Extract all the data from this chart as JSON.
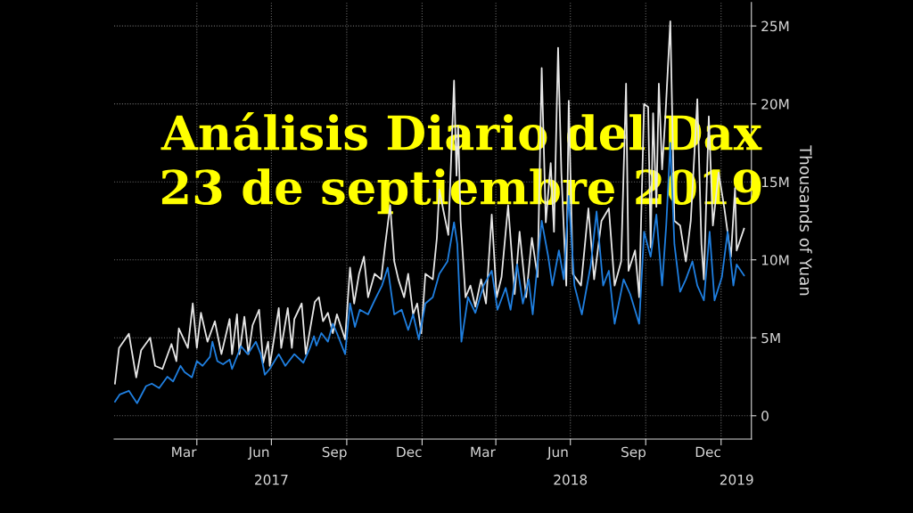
{
  "chart_data": {
    "type": "line",
    "title": "Análisis Diario del Dax\n23 de septiembre 2019",
    "ylabel": "Thousands of Yuan",
    "xlim": [
      "2016-12-21",
      "2019-02-07"
    ],
    "xticks": [
      {
        "value": "2017-04-01",
        "label": null
      },
      {
        "value": "2017-07-01",
        "label": null
      },
      {
        "value": "2017-10-01",
        "label": null
      },
      {
        "value": "2018-01-01",
        "label": null
      },
      {
        "value": "2018-04-01",
        "label": null
      },
      {
        "value": "2018-07-01",
        "label": null
      },
      {
        "value": "2018-10-01",
        "label": null
      },
      {
        "value": "2019-01-01",
        "label": null
      },
      {
        "value": "2017-03-16",
        "label": "Mar"
      },
      {
        "value": "2017-06-16",
        "label": "Jun"
      },
      {
        "value": "2017-09-16",
        "label": "Sep"
      },
      {
        "value": "2017-12-16",
        "label": "Dec"
      },
      {
        "value": "2018-03-16",
        "label": "Mar"
      },
      {
        "value": "2018-06-16",
        "label": "Jun"
      },
      {
        "value": "2018-09-16",
        "label": "Sep"
      },
      {
        "value": "2018-12-16",
        "label": "Dec"
      }
    ],
    "x2lim": [
      "2016-12-21",
      "2019-02-07"
    ],
    "x2ticks": [
      {
        "value": "2017-07-01",
        "label": "2017"
      },
      {
        "value": "2018-07-01",
        "label": "2018"
      },
      {
        "value": "2019-01-20",
        "label": "2019"
      }
    ],
    "ylim": [
      -1500000.0,
      26500000.0
    ],
    "yticks": [
      {
        "value": 0,
        "label": "0"
      },
      {
        "value": 5000000.0,
        "label": "5M"
      },
      {
        "value": 10000000.0,
        "label": "10M"
      },
      {
        "value": 15000000.0,
        "label": "15M"
      },
      {
        "value": 20000000.0,
        "label": "20M"
      },
      {
        "value": 25000000.0,
        "label": "25M"
      }
    ],
    "grid": true,
    "line_style": "solid",
    "series": [
      {
        "color": "#e6e6e6",
        "x": [
          "2016-12-22",
          "2016-12-27",
          "2017-01-08",
          "2017-01-17",
          "2017-01-23",
          "2017-02-03",
          "2017-02-09",
          "2017-02-18",
          "2017-03-01",
          "2017-03-07",
          "2017-03-10",
          "2017-03-21",
          "2017-03-27",
          "2017-04-01",
          "2017-04-06",
          "2017-04-14",
          "2017-04-23",
          "2017-05-01",
          "2017-05-11",
          "2017-05-14",
          "2017-05-20",
          "2017-05-23",
          "2017-05-29",
          "2017-06-03",
          "2017-06-08",
          "2017-06-16",
          "2017-06-21",
          "2017-06-27",
          "2017-06-29",
          "2017-07-10",
          "2017-07-13",
          "2017-07-21",
          "2017-07-26",
          "2017-07-29",
          "2017-08-07",
          "2017-08-12",
          "2017-08-23",
          "2017-08-28",
          "2017-09-02",
          "2017-09-08",
          "2017-09-14",
          "2017-09-19",
          "2017-09-29",
          "2017-10-05",
          "2017-10-10",
          "2017-10-16",
          "2017-10-22",
          "2017-10-27",
          "2017-11-04",
          "2017-11-12",
          "2017-11-17",
          "2017-11-23",
          "2017-11-28",
          "2017-12-03",
          "2017-12-10",
          "2017-12-15",
          "2017-12-21",
          "2017-12-26",
          "2017-12-31",
          "2018-01-05",
          "2018-01-14",
          "2018-01-19",
          "2018-01-22",
          "2018-01-28",
          "2018-02-02",
          "2018-02-09",
          "2018-02-12",
          "2018-02-14",
          "2018-02-17",
          "2018-02-23",
          "2018-03-01",
          "2018-03-07",
          "2018-03-14",
          "2018-03-20",
          "2018-03-27",
          "2018-04-02",
          "2018-04-08",
          "2018-04-16",
          "2018-04-24",
          "2018-04-30",
          "2018-05-08",
          "2018-05-15",
          "2018-05-22",
          "2018-05-27",
          "2018-06-01",
          "2018-06-07",
          "2018-06-11",
          "2018-06-16",
          "2018-06-20",
          "2018-06-26",
          "2018-06-29",
          "2018-07-04",
          "2018-07-14",
          "2018-07-23",
          "2018-07-30",
          "2018-08-08",
          "2018-08-17",
          "2018-08-24",
          "2018-09-01",
          "2018-09-07",
          "2018-09-10",
          "2018-09-18",
          "2018-09-23",
          "2018-09-29",
          "2018-10-04",
          "2018-10-07",
          "2018-10-10",
          "2018-10-14",
          "2018-10-17",
          "2018-10-21",
          "2018-10-25",
          "2018-10-31",
          "2018-11-05",
          "2018-11-12",
          "2018-11-19",
          "2018-11-25",
          "2018-12-03",
          "2018-12-08",
          "2018-12-11",
          "2018-12-17",
          "2018-12-22",
          "2018-12-29",
          "2019-01-05",
          "2019-01-13",
          "2019-01-18",
          "2019-01-20",
          "2019-01-29"
        ],
        "values": [
          2060000.0,
          4350000.0,
          5260000.0,
          2460000.0,
          4200000.0,
          5000000.0,
          3200000.0,
          3000000.0,
          4600000.0,
          3500000.0,
          5600000.0,
          4350000.0,
          7200000.0,
          4350000.0,
          6600000.0,
          4750000.0,
          6060000.0,
          3950000.0,
          6200000.0,
          3950000.0,
          6500000.0,
          3950000.0,
          6350000.0,
          3950000.0,
          5800000.0,
          6800000.0,
          3400000.0,
          4750000.0,
          3200000.0,
          6900000.0,
          4350000.0,
          6900000.0,
          4350000.0,
          6200000.0,
          7200000.0,
          3950000.0,
          7300000.0,
          7600000.0,
          6060000.0,
          6600000.0,
          5300000.0,
          6500000.0,
          4900000.0,
          9500000.0,
          7200000.0,
          9100000.0,
          10200000.0,
          7600000.0,
          9100000.0,
          8750000.0,
          11000000.0,
          13500000.0,
          9900000.0,
          8750000.0,
          7600000.0,
          9100000.0,
          6500000.0,
          7200000.0,
          5300000.0,
          9100000.0,
          8750000.0,
          11400000.0,
          14500000.0,
          12900000.0,
          11600000.0,
          21500000.0,
          15400000.0,
          18600000.0,
          12500000.0,
          7600000.0,
          8350000.0,
          7000000.0,
          8750000.0,
          7200000.0,
          12900000.0,
          7600000.0,
          8900000.0,
          13500000.0,
          7800000.0,
          11800000.0,
          7600000.0,
          11400000.0,
          8900000.0,
          22300000.0,
          12400000.0,
          16200000.0,
          11800000.0,
          23600000.0,
          15600000.0,
          8350000.0,
          20200000.0,
          9100000.0,
          8350000.0,
          13300000.0,
          8750000.0,
          12500000.0,
          13300000.0,
          8350000.0,
          9900000.0,
          21300000.0,
          9300000.0,
          10600000.0,
          7600000.0,
          20000000.0,
          19800000.0,
          10800000.0,
          19400000.0,
          13400000.0,
          21300000.0,
          15800000.0,
          19200000.0,
          25300000.0,
          12500000.0,
          12200000.0,
          9900000.0,
          12500000.0,
          20300000.0,
          11000000.0,
          8750000.0,
          19200000.0,
          12200000.0,
          15600000.0,
          13300000.0,
          10200000.0,
          14600000.0,
          10600000.0,
          12000000.0
        ]
      },
      {
        "color": "#1f7fe0",
        "x": [
          "2016-12-22",
          "2016-12-28",
          "2017-01-08",
          "2017-01-13",
          "2017-01-18",
          "2017-01-29",
          "2017-02-05",
          "2017-02-14",
          "2017-02-24",
          "2017-03-03",
          "2017-03-12",
          "2017-03-17",
          "2017-03-26",
          "2017-04-01",
          "2017-04-08",
          "2017-04-17",
          "2017-04-20",
          "2017-04-26",
          "2017-05-03",
          "2017-05-11",
          "2017-05-14",
          "2017-05-25",
          "2017-06-02",
          "2017-06-12",
          "2017-06-18",
          "2017-06-23",
          "2017-06-29",
          "2017-07-10",
          "2017-07-18",
          "2017-07-29",
          "2017-08-09",
          "2017-08-17",
          "2017-08-22",
          "2017-08-25",
          "2017-08-31",
          "2017-09-08",
          "2017-09-14",
          "2017-09-19",
          "2017-09-29",
          "2017-10-05",
          "2017-10-11",
          "2017-10-17",
          "2017-10-27",
          "2017-11-04",
          "2017-11-13",
          "2017-11-20",
          "2017-11-28",
          "2017-12-07",
          "2017-12-15",
          "2017-12-21",
          "2017-12-28",
          "2018-01-05",
          "2018-01-14",
          "2018-01-22",
          "2018-02-01",
          "2018-02-09",
          "2018-02-13",
          "2018-02-18",
          "2018-02-26",
          "2018-03-07",
          "2018-03-17",
          "2018-03-27",
          "2018-04-03",
          "2018-04-13",
          "2018-04-19",
          "2018-04-27",
          "2018-05-04",
          "2018-05-11",
          "2018-05-16",
          "2018-05-27",
          "2018-06-04",
          "2018-06-09",
          "2018-06-17",
          "2018-06-23",
          "2018-06-29",
          "2018-07-06",
          "2018-07-15",
          "2018-07-26",
          "2018-08-02",
          "2018-08-10",
          "2018-08-17",
          "2018-08-24",
          "2018-09-04",
          "2018-09-12",
          "2018-09-23",
          "2018-09-29",
          "2018-10-07",
          "2018-10-14",
          "2018-10-21",
          "2018-10-26",
          "2018-10-31",
          "2018-11-05",
          "2018-11-12",
          "2018-11-19",
          "2018-11-27",
          "2018-12-03",
          "2018-12-11",
          "2018-12-18",
          "2018-12-24",
          "2019-01-02",
          "2019-01-09",
          "2019-01-16",
          "2019-01-20",
          "2019-01-29"
        ],
        "values": [
          900000.0,
          1370000.0,
          1600000.0,
          1200000.0,
          800000.0,
          1900000.0,
          2060000.0,
          1770000.0,
          2500000.0,
          2200000.0,
          3200000.0,
          2800000.0,
          2460000.0,
          3500000.0,
          3200000.0,
          3780000.0,
          4750000.0,
          3500000.0,
          3300000.0,
          3600000.0,
          3000000.0,
          4460000.0,
          3950000.0,
          4750000.0,
          3950000.0,
          2630000.0,
          3000000.0,
          3950000.0,
          3200000.0,
          3950000.0,
          3400000.0,
          4350000.0,
          5100000.0,
          4500000.0,
          5300000.0,
          4750000.0,
          5900000.0,
          5300000.0,
          3950000.0,
          7200000.0,
          5700000.0,
          6800000.0,
          6500000.0,
          7400000.0,
          8350000.0,
          9500000.0,
          6500000.0,
          6800000.0,
          5500000.0,
          6500000.0,
          4900000.0,
          7200000.0,
          7600000.0,
          9100000.0,
          9900000.0,
          12400000.0,
          11000000.0,
          4750000.0,
          7600000.0,
          6600000.0,
          8350000.0,
          9300000.0,
          6800000.0,
          8200000.0,
          6800000.0,
          9700000.0,
          7200000.0,
          8750000.0,
          6500000.0,
          12500000.0,
          10200000.0,
          8350000.0,
          10600000.0,
          8750000.0,
          14100000.0,
          8350000.0,
          6500000.0,
          9700000.0,
          13100000.0,
          8350000.0,
          9300000.0,
          5900000.0,
          8750000.0,
          7800000.0,
          5900000.0,
          11800000.0,
          10200000.0,
          12900000.0,
          8350000.0,
          12200000.0,
          17500000.0,
          11000000.0,
          7950000.0,
          8750000.0,
          9900000.0,
          8350000.0,
          7400000.0,
          11800000.0,
          7400000.0,
          8900000.0,
          11800000.0,
          8350000.0,
          9700000.0,
          9000000.0
        ]
      }
    ]
  }
}
